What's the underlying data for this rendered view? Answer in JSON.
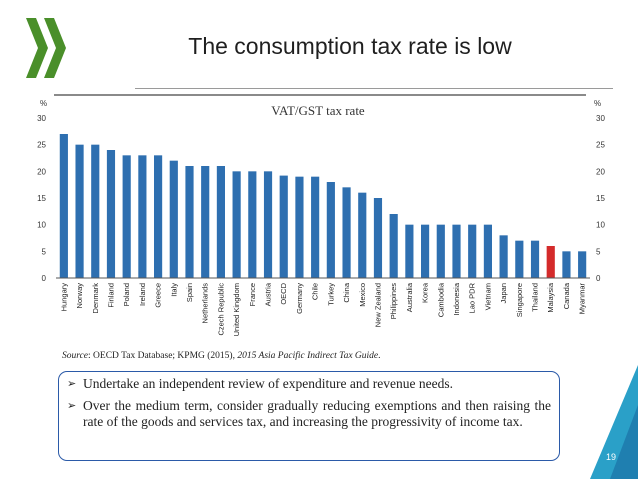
{
  "slide": {
    "title": "The consumption tax rate is low",
    "page_number": "19",
    "source": {
      "prefix": "Source",
      "text": ": OECD Tax Database; KPMG (2015), ",
      "italic": "2015 Asia Pacific Indirect Tax Guide",
      "suffix": "."
    },
    "bullets": [
      "Undertake an independent review of expenditure and revenue needs.",
      "Over the medium term, consider gradually reducing exemptions and then raising the rate of the goods and services tax, and increasing the progressivity of income tax."
    ]
  },
  "colors": {
    "bar": "#2e6fb0",
    "highlight": "#d42b2b",
    "box_border": "#2b5aa8",
    "logo": "#4a8f2a",
    "corner": "#2aa0c8"
  },
  "chart_data": {
    "type": "bar",
    "title": "VAT/GST tax rate",
    "ylabel_left": "%",
    "ylabel_right": "%",
    "ylim": [
      0,
      30
    ],
    "yticks": [
      0,
      5,
      10,
      15,
      20,
      25,
      30
    ],
    "grid": false,
    "categories": [
      "Hungary",
      "Norway",
      "Denmark",
      "Finland",
      "Poland",
      "Ireland",
      "Greece",
      "Italy",
      "Spain",
      "Netherlands",
      "Czech Republic",
      "United Kingdom",
      "France",
      "Austria",
      "OECD",
      "Germany",
      "Chile",
      "Turkey",
      "China",
      "Mexico",
      "New Zealand",
      "Philippines",
      "Australia",
      "Korea",
      "Cambodia",
      "Indonesia",
      "Lao PDR",
      "Vietnam",
      "Japan",
      "Singapore",
      "Thailand",
      "Malaysia",
      "Canada",
      "Myanmar"
    ],
    "values": [
      27,
      25,
      25,
      24,
      23,
      23,
      23,
      22,
      21,
      21,
      21,
      20,
      20,
      20,
      19.2,
      19,
      19,
      18,
      17,
      16,
      15,
      12,
      10,
      10,
      10,
      10,
      10,
      10,
      8,
      7,
      7,
      6,
      5,
      5
    ],
    "highlight": [
      "Malaysia"
    ]
  }
}
